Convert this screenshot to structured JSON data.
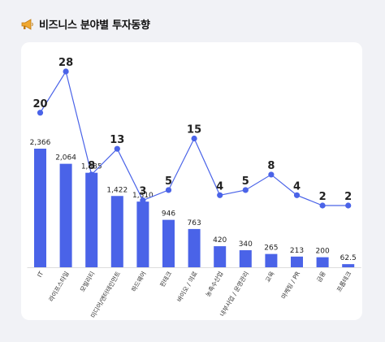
{
  "header": {
    "title": "비즈니스 분야별 투자동향",
    "icon": "megaphone-icon"
  },
  "colors": {
    "bar": "#4a63e8",
    "line": "#4a63e8",
    "point": "#4a63e8",
    "text": "#222222"
  },
  "chart_data": {
    "type": "bar",
    "title": "비즈니스 분야별 투자동향",
    "xlabel": "",
    "ylabel": "",
    "categories": [
      "IT",
      "라이프스타일",
      "모빌리티",
      "미디어/엔터테인먼트",
      "하드웨어",
      "핀테크",
      "바이오 / 의료",
      "농축수산업",
      "내부사업 / 운영관리",
      "교육",
      "마케팅 / PR",
      "금융",
      "프롭테크"
    ],
    "series": [
      {
        "type": "bar",
        "values": [
          2366,
          2064,
          1885,
          1422,
          1310,
          946,
          763,
          420,
          340,
          265,
          213,
          200,
          62.5
        ],
        "labels": [
          "2,366",
          "2,064",
          "1,885",
          "1,422",
          "1,310",
          "946",
          "763",
          "420",
          "340",
          "265",
          "213",
          "200",
          "62.5"
        ]
      },
      {
        "type": "line",
        "values": [
          20,
          28,
          8,
          13,
          3,
          5,
          15,
          4,
          5,
          8,
          4,
          2,
          2
        ],
        "labels": [
          "20",
          "28",
          "8",
          "13",
          "3",
          "5",
          "15",
          "4",
          "5",
          "8",
          "4",
          "2",
          "2"
        ]
      }
    ],
    "grid": false,
    "legend": "none"
  }
}
